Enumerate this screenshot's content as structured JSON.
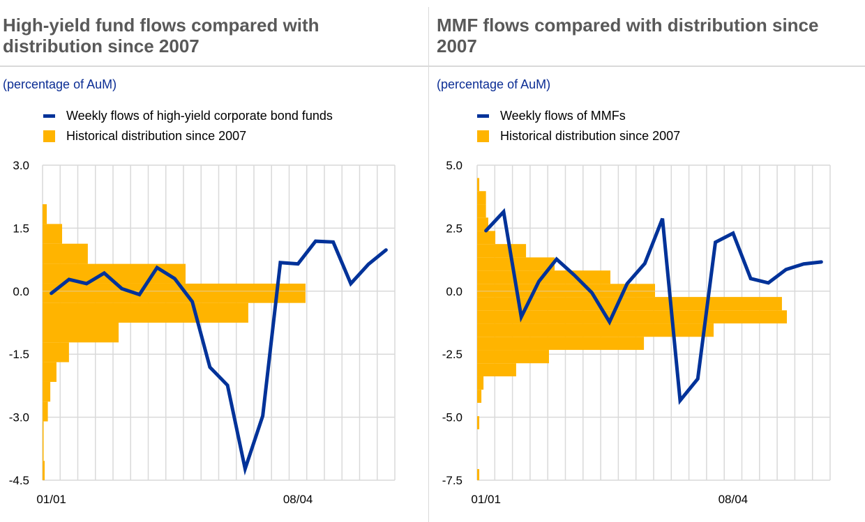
{
  "colors": {
    "line": "#003299",
    "histogram": "#ffb400",
    "grid": "#d9d9d9",
    "title": "#595959",
    "subtitle": "#0b2d94"
  },
  "chart_data": [
    {
      "type": "line+histogram",
      "title": "High-yield fund flows compared with distribution since 2007",
      "subtitle": "(percentage of AuM)",
      "legend": [
        "Weekly flows of high-yield corporate bond funds",
        "Historical distribution since 2007"
      ],
      "ylim": [
        -4.5,
        3.0
      ],
      "yticks": [
        "3.0",
        "1.5",
        "0.0",
        "-1.5",
        "-3.0",
        "-4.5"
      ],
      "ytick_values": [
        3.0,
        1.5,
        0.0,
        -1.5,
        -3.0,
        -4.5
      ],
      "n_weeks": 20,
      "xticks": [
        {
          "index": 0,
          "label": "01/01"
        },
        {
          "index": 14,
          "label": "08/04"
        }
      ],
      "series": [
        {
          "name": "Weekly flows of high-yield corporate bond funds",
          "values": [
            -0.05,
            0.28,
            0.18,
            0.43,
            0.06,
            -0.08,
            0.56,
            0.3,
            -0.25,
            -1.81,
            -2.24,
            -4.23,
            -2.97,
            0.68,
            0.65,
            1.19,
            1.17,
            0.18,
            0.64,
            0.98
          ]
        }
      ],
      "histogram": [
        {
          "from": 1.6,
          "to": 2.07,
          "relative_frequency": 0.24
        },
        {
          "from": 1.13,
          "to": 1.6,
          "relative_frequency": 1.11
        },
        {
          "from": 0.65,
          "to": 1.13,
          "relative_frequency": 2.57
        },
        {
          "from": 0.18,
          "to": 0.65,
          "relative_frequency": 8.12
        },
        {
          "from": -0.28,
          "to": 0.18,
          "relative_frequency": 14.93
        },
        {
          "from": -0.75,
          "to": -0.28,
          "relative_frequency": 11.68
        },
        {
          "from": -1.22,
          "to": -0.75,
          "relative_frequency": 4.32
        },
        {
          "from": -1.69,
          "to": -1.22,
          "relative_frequency": 1.5
        },
        {
          "from": -2.16,
          "to": -1.69,
          "relative_frequency": 0.79
        },
        {
          "from": -2.63,
          "to": -2.16,
          "relative_frequency": 0.44
        },
        {
          "from": -3.1,
          "to": -2.63,
          "relative_frequency": 0.3
        },
        {
          "from": -3.57,
          "to": -3.1,
          "relative_frequency": 0.04
        },
        {
          "from": -4.04,
          "to": -3.57,
          "relative_frequency": 0.04
        },
        {
          "from": -4.5,
          "to": -4.04,
          "relative_frequency": 0.12
        }
      ]
    },
    {
      "type": "line+histogram",
      "title": "MMF flows compared with distribution since 2007",
      "subtitle": "(percentage of AuM)",
      "legend": [
        "Weekly flows of MMFs",
        "Historical distribution since 2007"
      ],
      "ylim": [
        -7.5,
        5.0
      ],
      "yticks": [
        "5.0",
        "2.5",
        "0.0",
        "-2.5",
        "-5.0",
        "-7.5"
      ],
      "ytick_values": [
        5.0,
        2.5,
        0.0,
        -2.5,
        -5.0,
        -7.5
      ],
      "n_weeks": 20,
      "xticks": [
        {
          "index": 0,
          "label": "01/01"
        },
        {
          "index": 14,
          "label": "08/04"
        }
      ],
      "series": [
        {
          "name": "Weekly flows of MMFs",
          "values": [
            2.4,
            3.15,
            -1.02,
            0.39,
            1.27,
            0.64,
            -0.06,
            -1.22,
            0.3,
            1.1,
            2.88,
            -4.34,
            -3.48,
            1.94,
            2.3,
            0.5,
            0.33,
            0.86,
            1.08,
            1.16
          ]
        }
      ],
      "histogram": [
        {
          "from": 3.97,
          "to": 4.49,
          "relative_frequency": 0.12
        },
        {
          "from": 3.44,
          "to": 3.97,
          "relative_frequency": 0.5
        },
        {
          "from": 2.92,
          "to": 3.44,
          "relative_frequency": 0.5
        },
        {
          "from": 2.39,
          "to": 2.92,
          "relative_frequency": 0.63
        },
        {
          "from": 1.87,
          "to": 2.39,
          "relative_frequency": 1.03
        },
        {
          "from": 1.34,
          "to": 1.87,
          "relative_frequency": 2.77
        },
        {
          "from": 0.82,
          "to": 1.34,
          "relative_frequency": 4.39
        },
        {
          "from": 0.29,
          "to": 0.82,
          "relative_frequency": 7.55
        },
        {
          "from": -0.23,
          "to": 0.29,
          "relative_frequency": 10.08
        },
        {
          "from": -0.76,
          "to": -0.23,
          "relative_frequency": 17.27
        },
        {
          "from": -1.28,
          "to": -0.76,
          "relative_frequency": 17.55
        },
        {
          "from": -1.81,
          "to": -1.28,
          "relative_frequency": 13.4
        },
        {
          "from": -2.33,
          "to": -1.81,
          "relative_frequency": 9.45
        },
        {
          "from": -2.86,
          "to": -2.33,
          "relative_frequency": 4.07
        },
        {
          "from": -3.38,
          "to": -2.86,
          "relative_frequency": 2.21
        },
        {
          "from": -3.91,
          "to": -3.38,
          "relative_frequency": 0.36
        },
        {
          "from": -4.43,
          "to": -3.91,
          "relative_frequency": 0.24
        },
        {
          "from": -5.48,
          "to": -4.96,
          "relative_frequency": 0.12
        },
        {
          "from": -7.5,
          "to": -7.06,
          "relative_frequency": 0.12
        }
      ]
    }
  ]
}
